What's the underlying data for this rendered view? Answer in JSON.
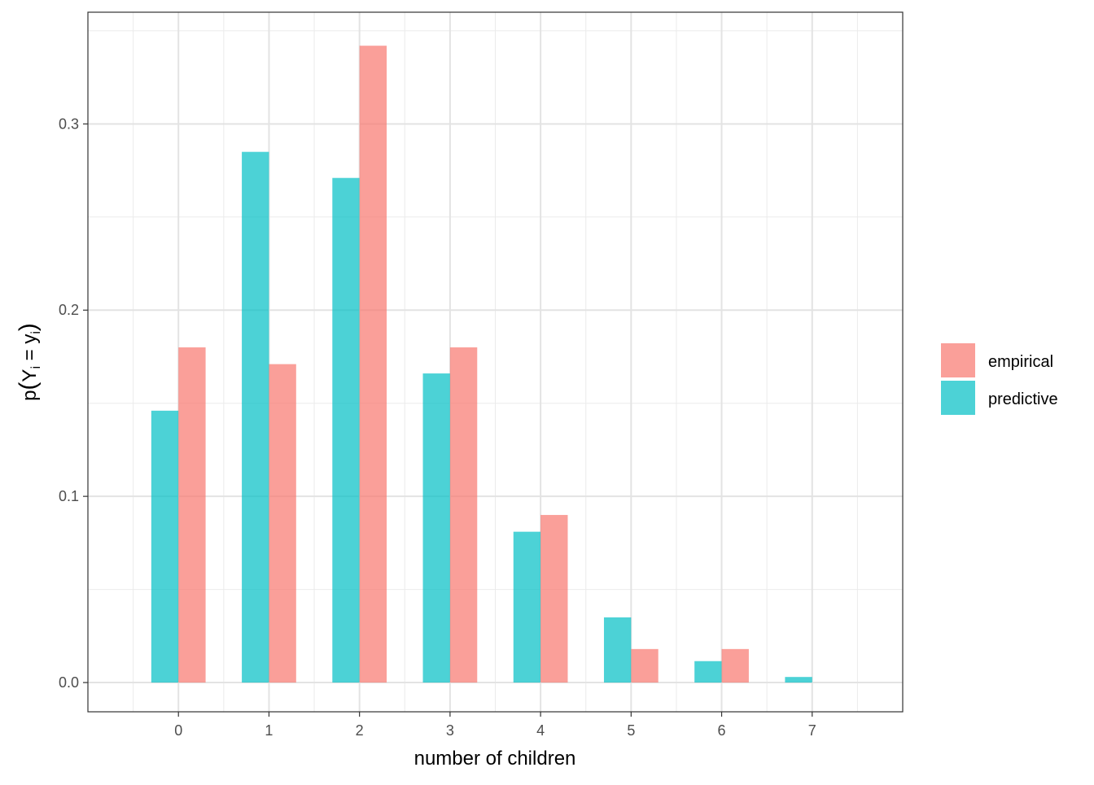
{
  "chart_data": {
    "type": "bar",
    "categories": [
      "0",
      "1",
      "2",
      "3",
      "4",
      "5",
      "6",
      "7"
    ],
    "series": [
      {
        "name": "predictive",
        "color": "#00BFC4",
        "values": [
          0.146,
          0.285,
          0.271,
          0.166,
          0.081,
          0.035,
          0.0115,
          0.003
        ]
      },
      {
        "name": "empirical",
        "color": "#F8766D",
        "values": [
          0.18,
          0.171,
          0.342,
          0.18,
          0.09,
          0.018,
          0.018,
          0.0
        ]
      }
    ],
    "legend_order": [
      "empirical",
      "predictive"
    ],
    "legend_position": "right",
    "xlabel": "number of children",
    "ylabel": {
      "base": "p",
      "open": "(",
      "var": "Y",
      "sub1": "i",
      "eq": " = ",
      "var2": "y",
      "sub2": "i",
      "close": ")"
    },
    "yticks": [
      "0.0",
      "0.1",
      "0.2",
      "0.3"
    ],
    "ylim": [
      -0.0157,
      0.36
    ],
    "grid": true,
    "bar_opacity": 0.7
  }
}
